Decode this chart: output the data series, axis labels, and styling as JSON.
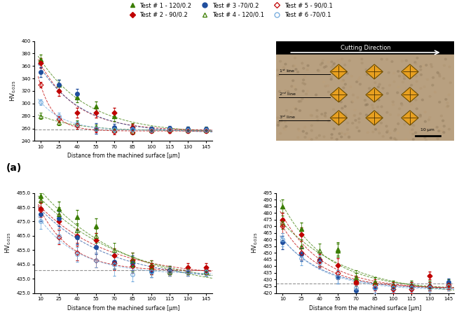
{
  "x": [
    10,
    25,
    40,
    55,
    70,
    85,
    100,
    115,
    130,
    145
  ],
  "panel_a": {
    "test1": [
      370,
      330,
      310,
      295,
      280,
      263,
      260,
      260,
      260,
      260
    ],
    "test2": [
      365,
      320,
      285,
      285,
      285,
      262,
      258,
      256,
      257,
      258
    ],
    "test3": [
      350,
      330,
      315,
      260,
      262,
      260,
      260,
      261,
      260,
      259
    ],
    "test4": [
      280,
      270,
      268,
      262,
      258,
      255,
      257,
      258,
      257,
      257
    ],
    "test5": [
      330,
      275,
      265,
      258,
      255,
      254,
      256,
      257,
      256,
      256
    ],
    "test6": [
      302,
      280,
      267,
      260,
      258,
      258,
      257,
      258,
      257,
      257
    ],
    "baseline": 258,
    "ylim": [
      240,
      400
    ],
    "yticks": [
      240,
      260,
      280,
      300,
      320,
      340,
      360,
      380,
      400
    ],
    "err1": [
      8,
      8,
      8,
      8,
      8,
      5,
      3,
      3,
      3,
      3
    ],
    "err2": [
      8,
      8,
      8,
      8,
      8,
      5,
      3,
      3,
      3,
      3
    ],
    "err3": [
      8,
      8,
      8,
      8,
      5,
      4,
      3,
      3,
      3,
      3
    ],
    "err4": [
      5,
      5,
      5,
      4,
      4,
      3,
      3,
      3,
      3,
      3
    ],
    "err5": [
      5,
      5,
      5,
      4,
      4,
      3,
      3,
      3,
      3,
      3
    ],
    "err6": [
      5,
      5,
      5,
      4,
      4,
      3,
      3,
      3,
      3,
      3
    ]
  },
  "panel_b": {
    "test1": [
      493,
      484,
      478,
      472,
      447,
      445,
      442,
      440,
      441,
      440
    ],
    "test2": [
      484,
      475,
      465,
      462,
      451,
      448,
      444,
      441,
      443,
      443
    ],
    "test3": [
      480,
      477,
      464,
      457,
      447,
      446,
      440,
      441,
      440,
      440
    ],
    "test4": [
      490,
      480,
      469,
      465,
      455,
      448,
      444,
      441,
      441,
      440
    ],
    "test5": [
      483,
      464,
      453,
      448,
      446,
      444,
      442,
      440,
      440,
      441
    ],
    "test6": [
      475,
      465,
      452,
      448,
      445,
      438,
      440,
      440,
      440,
      440
    ],
    "baseline": 441,
    "ylim": [
      425.0,
      495.0
    ],
    "yticks": [
      425.0,
      435.0,
      445.0,
      455.0,
      465.0,
      475.0,
      485.0,
      495.0
    ],
    "err1": [
      5,
      5,
      5,
      5,
      5,
      5,
      4,
      3,
      3,
      3
    ],
    "err2": [
      5,
      5,
      5,
      5,
      5,
      5,
      4,
      3,
      3,
      3
    ],
    "err3": [
      5,
      5,
      5,
      5,
      5,
      5,
      4,
      3,
      3,
      3
    ],
    "err4": [
      5,
      5,
      5,
      5,
      5,
      5,
      4,
      3,
      3,
      3
    ],
    "err5": [
      5,
      5,
      5,
      5,
      5,
      5,
      4,
      3,
      3,
      3
    ],
    "err6": [
      5,
      5,
      5,
      5,
      8,
      5,
      4,
      3,
      3,
      3
    ]
  },
  "panel_c": {
    "test1": [
      485,
      468,
      445,
      452,
      430,
      428,
      426,
      426,
      426,
      427
    ],
    "test2": [
      475,
      464,
      444,
      441,
      428,
      424,
      423,
      423,
      433,
      425
    ],
    "test3": [
      458,
      449,
      445,
      432,
      422,
      424,
      424,
      425,
      425,
      428
    ],
    "test4": [
      473,
      455,
      452,
      453,
      432,
      428,
      425,
      425,
      425,
      426
    ],
    "test5": [
      470,
      450,
      445,
      435,
      427,
      426,
      425,
      425,
      425,
      426
    ],
    "test6": [
      460,
      446,
      443,
      432,
      424,
      424,
      424,
      424,
      424,
      425
    ],
    "baseline": 427,
    "ylim": [
      420,
      495
    ],
    "yticks": [
      420,
      425,
      430,
      435,
      440,
      445,
      450,
      455,
      460,
      465,
      470,
      475,
      480,
      485,
      490,
      495
    ],
    "err1": [
      5,
      5,
      5,
      5,
      5,
      4,
      3,
      3,
      3,
      3
    ],
    "err2": [
      5,
      5,
      5,
      5,
      5,
      4,
      3,
      3,
      3,
      3
    ],
    "err3": [
      5,
      5,
      5,
      5,
      5,
      4,
      3,
      3,
      3,
      3
    ],
    "err4": [
      5,
      5,
      5,
      5,
      5,
      4,
      3,
      3,
      3,
      3
    ],
    "err5": [
      5,
      5,
      5,
      5,
      5,
      4,
      3,
      3,
      3,
      3
    ],
    "err6": [
      5,
      5,
      5,
      5,
      5,
      4,
      3,
      3,
      3,
      3
    ]
  },
  "colors": {
    "green_filled": "#3a7d00",
    "red_filled": "#c00000",
    "blue_filled": "#1f4e9e",
    "blue_open": "#6fa8dc"
  },
  "xlabel": "Distance from the machined surface [μm]",
  "ylabel": "HV$_{0.025}$",
  "xticks": [
    10,
    25,
    40,
    55,
    70,
    85,
    100,
    115,
    130,
    145
  ]
}
